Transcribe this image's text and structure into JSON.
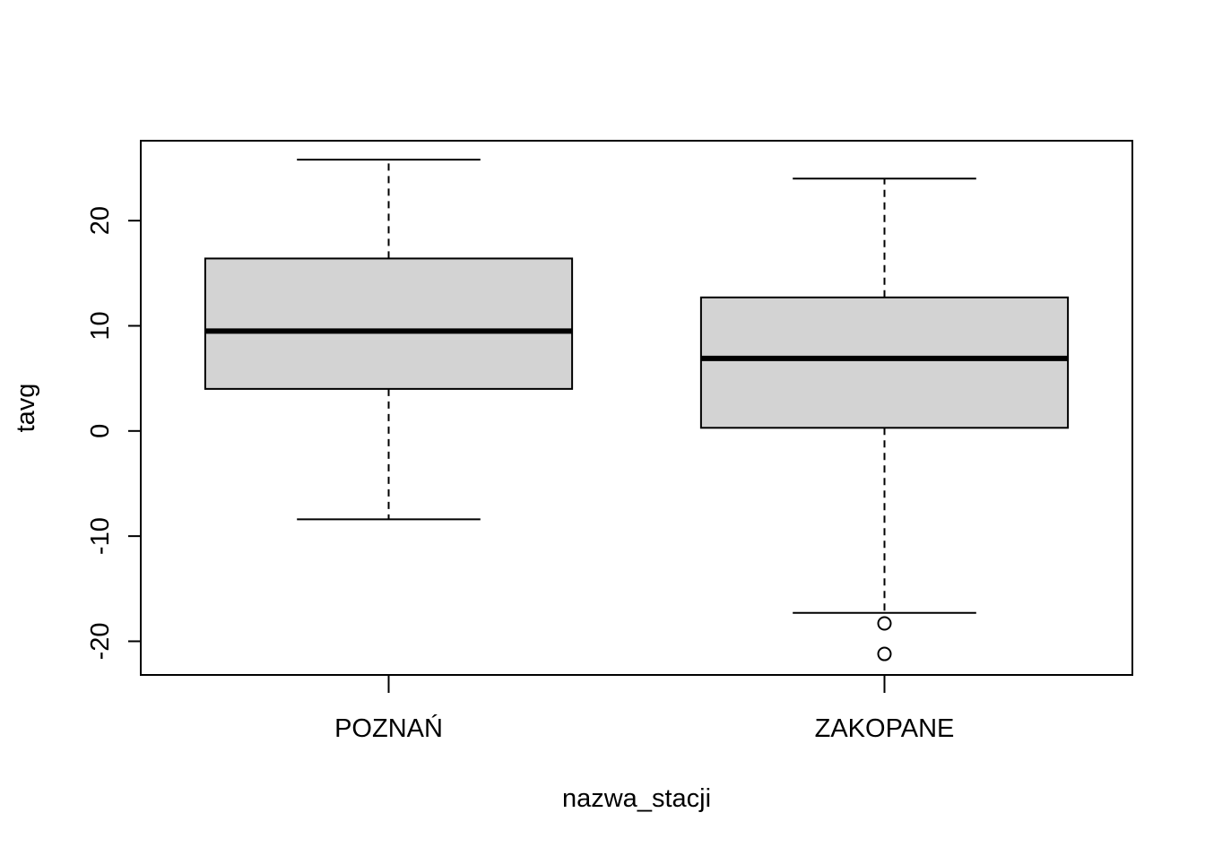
{
  "chart_data": {
    "type": "boxplot",
    "title": "",
    "xlabel": "nazwa_stacji",
    "ylabel": "tavg",
    "ylim": [
      -23.2,
      27.6
    ],
    "y_ticks": [
      -20,
      -10,
      0,
      10,
      20
    ],
    "y_tick_labels": [
      "-20",
      "-10",
      "0",
      "10",
      "20"
    ],
    "grid": false,
    "legend": "none",
    "colors": {
      "box_fill": "#d3d3d3",
      "stroke": "#000000",
      "background": "#ffffff"
    },
    "categories": [
      "POZNAŃ",
      "ZAKOPANE"
    ],
    "boxes": [
      {
        "name": "POZNAŃ",
        "whisker_low": -8.4,
        "q1": 4.0,
        "median": 9.5,
        "q3": 16.4,
        "whisker_high": 25.8,
        "outliers": []
      },
      {
        "name": "ZAKOPANE",
        "whisker_low": -17.3,
        "q1": 0.3,
        "median": 6.9,
        "q3": 12.7,
        "whisker_high": 24.0,
        "outliers": [
          -18.3,
          -21.2
        ]
      }
    ]
  }
}
